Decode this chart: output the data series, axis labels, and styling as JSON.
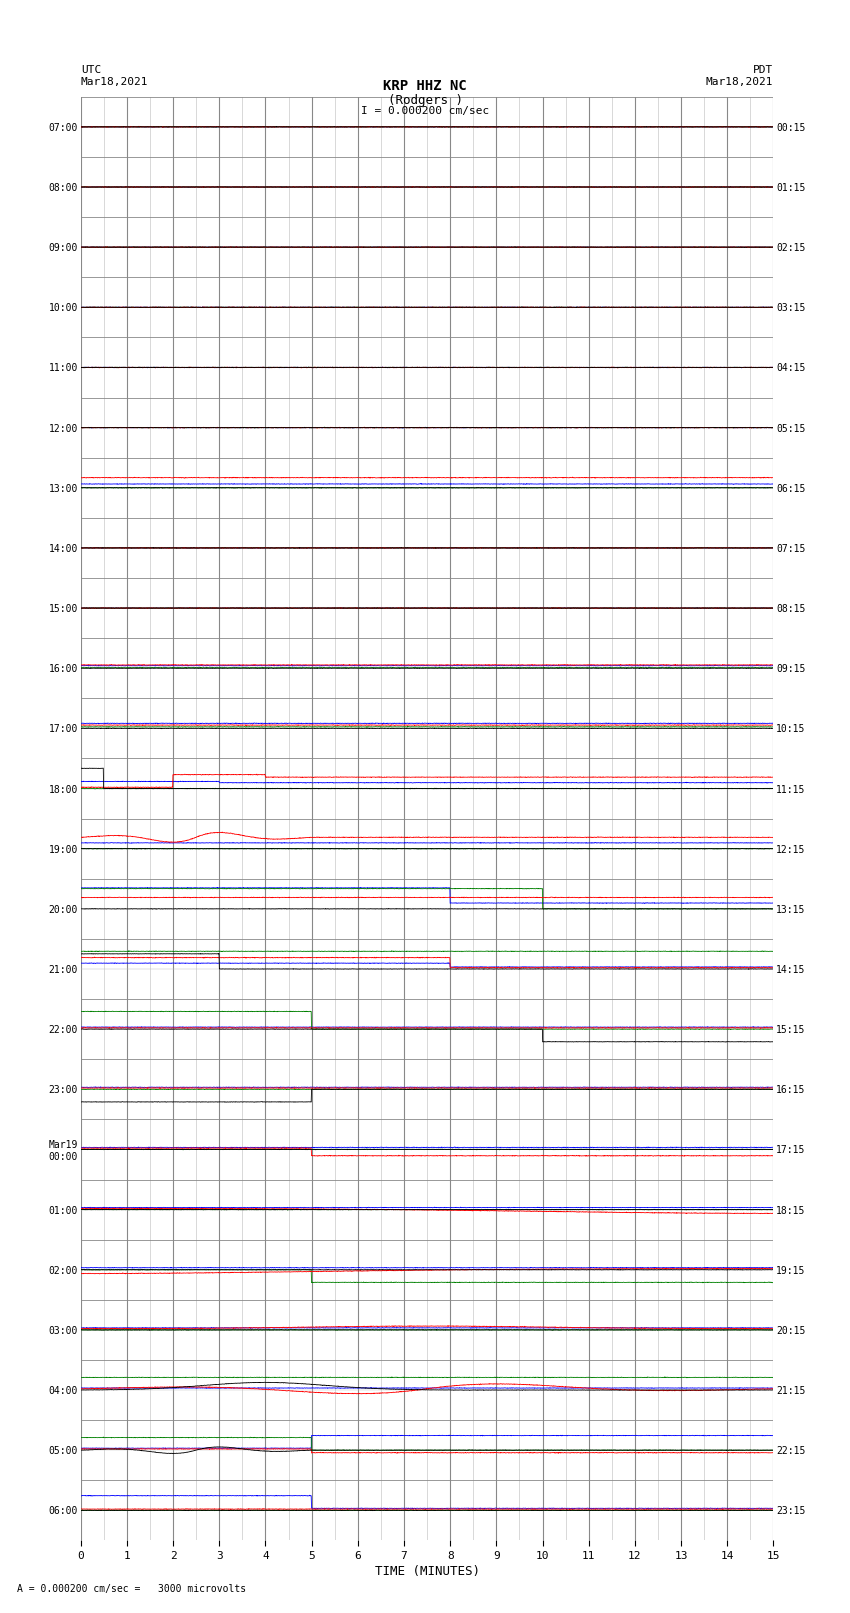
{
  "title_line1": "KRP HHZ NC",
  "title_line2": "(Rodgers )",
  "title_line3": "I = 0.000200 cm/sec",
  "left_label_top": "UTC",
  "left_label_date": "Mar18,2021",
  "right_label_top": "PDT",
  "right_label_date": "Mar18,2021",
  "xlabel": "TIME (MINUTES)",
  "footer_text": "= 0.000200 cm/sec =   3000 microvolts",
  "ytick_labels_left": [
    "07:00",
    "08:00",
    "09:00",
    "10:00",
    "11:00",
    "12:00",
    "13:00",
    "14:00",
    "15:00",
    "16:00",
    "17:00",
    "18:00",
    "19:00",
    "20:00",
    "21:00",
    "22:00",
    "23:00",
    "Mar19\n00:00",
    "01:00",
    "02:00",
    "03:00",
    "04:00",
    "05:00",
    "06:00"
  ],
  "ytick_labels_right": [
    "00:15",
    "01:15",
    "02:15",
    "03:15",
    "04:15",
    "05:15",
    "06:15",
    "07:15",
    "08:15",
    "09:15",
    "10:15",
    "11:15",
    "12:15",
    "13:15",
    "14:15",
    "15:15",
    "16:15",
    "17:15",
    "18:15",
    "19:15",
    "20:15",
    "21:15",
    "22:15",
    "23:15"
  ],
  "n_rows": 24,
  "background_color": "#ffffff",
  "grid_major_color": "#888888",
  "grid_minor_color": "#bbbbbb",
  "xlim": [
    0,
    15
  ],
  "xticks": [
    0,
    1,
    2,
    3,
    4,
    5,
    6,
    7,
    8,
    9,
    10,
    11,
    12,
    13,
    14,
    15
  ],
  "figsize": [
    8.5,
    16.13
  ],
  "dpi": 100
}
